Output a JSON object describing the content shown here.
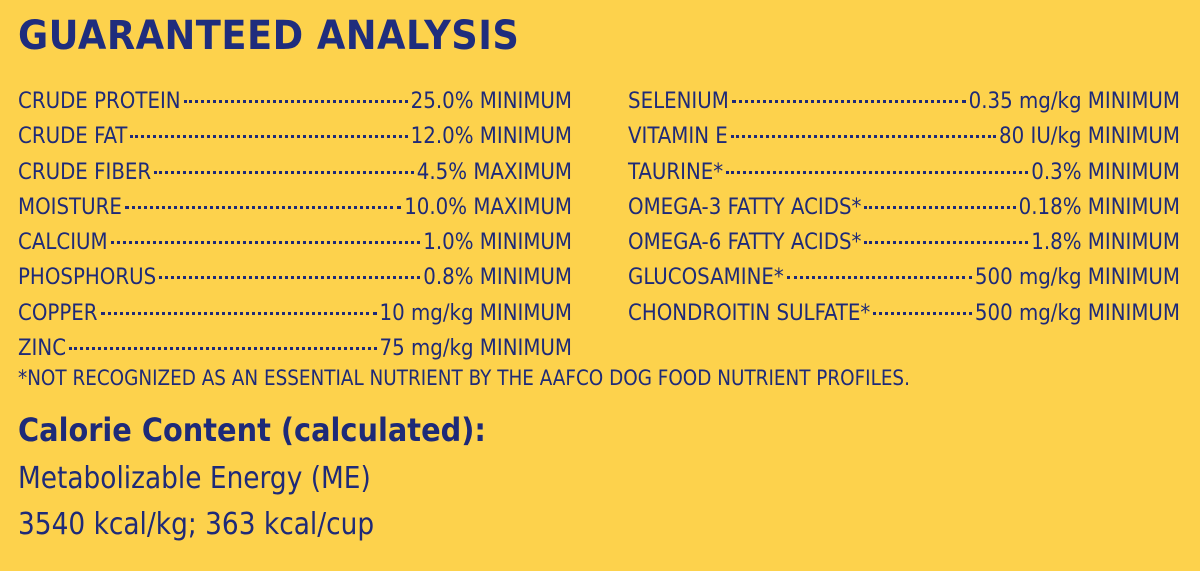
{
  "title": "GUARANTEED ANALYSIS",
  "analysis_left": [
    {
      "label": "CRUDE PROTEIN",
      "value": "25.0% MINIMUM"
    },
    {
      "label": "CRUDE FAT",
      "value": "12.0% MINIMUM"
    },
    {
      "label": "CRUDE FIBER",
      "value": "4.5% MAXIMUM"
    },
    {
      "label": "MOISTURE",
      "value": "10.0% MAXIMUM"
    },
    {
      "label": "CALCIUM",
      "value": "1.0% MINIMUM"
    },
    {
      "label": "PHOSPHORUS",
      "value": "0.8% MINIMUM"
    },
    {
      "label": "COPPER",
      "value": "10 mg/kg MINIMUM"
    },
    {
      "label": "ZINC",
      "value": "75 mg/kg MINIMUM"
    }
  ],
  "analysis_right": [
    {
      "label": "SELENIUM",
      "value": "0.35 mg/kg MINIMUM"
    },
    {
      "label": "VITAMIN E",
      "value": "80 IU/kg MINIMUM"
    },
    {
      "label": "TAURINE*",
      "value": "0.3% MINIMUM"
    },
    {
      "label": "OMEGA-3 FATTY ACIDS*",
      "value": "0.18% MINIMUM"
    },
    {
      "label": "OMEGA-6 FATTY ACIDS*",
      "value": "1.8% MINIMUM"
    },
    {
      "label": "GLUCOSAMINE*",
      "value": "500 mg/kg MINIMUM"
    },
    {
      "label": "CHONDROITIN SULFATE*",
      "value": "500 mg/kg MINIMUM"
    }
  ],
  "footnote": "*NOT RECOGNIZED AS AN ESSENTIAL NUTRIENT BY THE AAFCO DOG FOOD NUTRIENT PROFILES.",
  "calorie": {
    "heading": "Calorie Content (calculated):",
    "line1": "Metabolizable Energy (ME)",
    "line2": "3540 kcal/kg; 363 kcal/cup"
  },
  "colors": {
    "background": "#fdd24c",
    "text": "#1e2a78"
  }
}
